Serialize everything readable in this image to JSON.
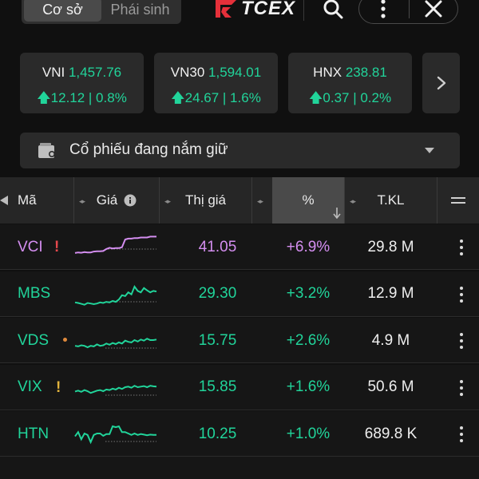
{
  "header": {
    "tabs": [
      {
        "label": "Cơ sở",
        "active": true
      },
      {
        "label": "Phái sinh",
        "active": false
      }
    ],
    "logo_text": "TCEX"
  },
  "indices": [
    {
      "name": "VNI",
      "value": "1,457.76",
      "change": "12.12 | 0.8%"
    },
    {
      "name": "VN30",
      "value": "1,594.01",
      "change": "24.67 | 1.6%"
    },
    {
      "name": "HNX",
      "value": "238.81",
      "change": "0.37 | 0.2%"
    }
  ],
  "filter": {
    "label": "Cổ phiếu đang nắm giữ"
  },
  "table": {
    "columns": {
      "symbol": "Mã",
      "price": "Giá",
      "market_price": "Thị giá",
      "percent": "%",
      "volume": "T.KL"
    },
    "rows": [
      {
        "symbol": "VCI",
        "flag": "!",
        "flag_color": "#e5484d",
        "tone": "purple",
        "price": "41.05",
        "percent": "+6.9%",
        "volume": "29.8 M",
        "spark": [
          0.28,
          0.3,
          0.29,
          0.31,
          0.3,
          0.3,
          0.33,
          0.34,
          0.34,
          0.35,
          0.42,
          0.46,
          0.44,
          0.45,
          0.45,
          0.48,
          0.75,
          0.78,
          0.78,
          0.8,
          0.8,
          0.82,
          0.82,
          0.82,
          0.85,
          0.85,
          0.85
        ]
      },
      {
        "symbol": "MBS",
        "flag": "",
        "flag_color": "",
        "tone": "green",
        "price": "29.30",
        "percent": "+3.2%",
        "volume": "12.9 M",
        "spark": [
          0.2,
          0.18,
          0.15,
          0.12,
          0.18,
          0.16,
          0.14,
          0.16,
          0.2,
          0.18,
          0.22,
          0.2,
          0.25,
          0.22,
          0.3,
          0.45,
          0.42,
          0.55,
          0.48,
          0.75,
          0.6,
          0.55,
          0.7,
          0.62,
          0.55,
          0.6,
          0.58
        ]
      },
      {
        "symbol": "VDS",
        "flag": "dot",
        "flag_color": "#e08a3c",
        "tone": "green",
        "price": "15.75",
        "percent": "+2.6%",
        "volume": "4.9 M",
        "spark": [
          0.3,
          0.28,
          0.32,
          0.3,
          0.25,
          0.3,
          0.28,
          0.35,
          0.3,
          0.32,
          0.38,
          0.34,
          0.4,
          0.36,
          0.42,
          0.38,
          0.48,
          0.44,
          0.42,
          0.5,
          0.45,
          0.52,
          0.48,
          0.55,
          0.5,
          0.5,
          0.52
        ]
      },
      {
        "symbol": "VIX",
        "flag": "!",
        "flag_color": "#e0b23c",
        "tone": "green",
        "price": "15.85",
        "percent": "+1.6%",
        "volume": "50.6 M",
        "spark": [
          0.35,
          0.38,
          0.34,
          0.4,
          0.36,
          0.3,
          0.34,
          0.38,
          0.4,
          0.36,
          0.42,
          0.4,
          0.45,
          0.42,
          0.48,
          0.44,
          0.5,
          0.52,
          0.48,
          0.55,
          0.5,
          0.52,
          0.54,
          0.5,
          0.55,
          0.53,
          0.52
        ]
      },
      {
        "symbol": "HTN",
        "flag": "",
        "flag_color": "",
        "tone": "green",
        "price": "10.25",
        "percent": "+1.0%",
        "volume": "689.8 K",
        "spark": [
          0.4,
          0.55,
          0.3,
          0.5,
          0.45,
          0.2,
          0.45,
          0.5,
          0.5,
          0.42,
          0.48,
          0.48,
          0.75,
          0.72,
          0.75,
          0.55,
          0.55,
          0.5,
          0.45,
          0.5,
          0.45,
          0.48,
          0.46,
          0.44,
          0.46,
          0.45,
          0.45
        ]
      }
    ]
  },
  "colors": {
    "up": "#21d49a",
    "ceiling": "#d48ef0"
  }
}
